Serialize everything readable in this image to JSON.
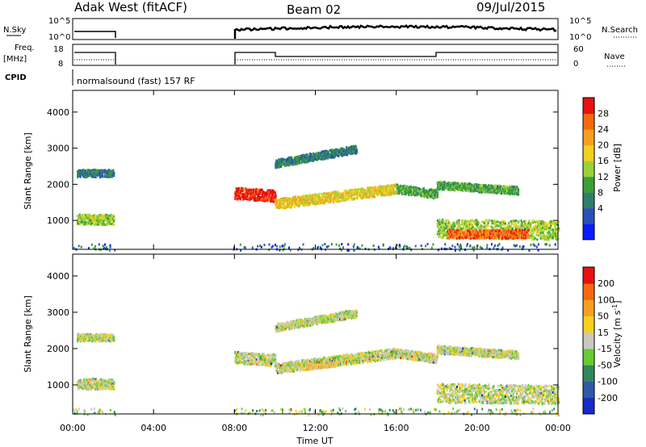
{
  "header": {
    "station": "Adak West (fitACF)",
    "beam": "Beam 02",
    "date": "09/Jul/2015"
  },
  "top_panels": {
    "nsky_label": "N.Sky",
    "nsearch_label": "N.Search",
    "nsky_ticks": [
      "10^5",
      "10^0"
    ],
    "freq_label_1": "Freq.",
    "freq_label_2": "[MHz]",
    "freq_ticks": [
      "18",
      "8"
    ],
    "nave_label": "Nave",
    "nave_ticks": [
      "60",
      "0"
    ],
    "cpid_label": "CPID",
    "cpid_text": "normalsound (fast) 157 RF"
  },
  "chart_data": [
    {
      "type": "heatmap",
      "name": "power",
      "ylabel": "Slant Range [km]",
      "xlabel": "Time UT",
      "ylim": [
        200,
        4600
      ],
      "xlim": [
        0,
        24
      ],
      "yticks": [
        "4000",
        "3000",
        "2000",
        "1000"
      ],
      "xticks": [
        "00:00",
        "04:00",
        "08:00",
        "12:00",
        "16:00",
        "20:00",
        "00:00"
      ],
      "colorbar": {
        "label": "Power [dB]",
        "ticks": [
          "28",
          "24",
          "20",
          "16",
          "12",
          "8",
          "4"
        ],
        "colors": [
          "#0a1cff",
          "#2a4fb8",
          "#2e7f6a",
          "#3aa03a",
          "#9ad23a",
          "#f0d020",
          "#f7a020",
          "#f56a10",
          "#e81010"
        ]
      },
      "bands": [
        {
          "t0": 0.2,
          "t1": 2.0,
          "r0": 2330,
          "r1": 2330,
          "w": 100,
          "level": 2
        },
        {
          "t0": 0.2,
          "t1": 2.0,
          "r0": 1050,
          "r1": 1050,
          "w": 140,
          "level": 4
        },
        {
          "t0": 8.0,
          "t1": 10.0,
          "r0": 1780,
          "r1": 1700,
          "w": 160,
          "level": 8
        },
        {
          "t0": 10.0,
          "t1": 16.0,
          "r0": 1480,
          "r1": 1900,
          "w": 140,
          "level": 5
        },
        {
          "t0": 16.0,
          "t1": 18.0,
          "r0": 1900,
          "r1": 1750,
          "w": 120,
          "level": 3
        },
        {
          "t0": 10.0,
          "t1": 14.0,
          "r0": 2600,
          "r1": 3000,
          "w": 110,
          "level": 2
        },
        {
          "t0": 18.0,
          "t1": 22.0,
          "r0": 2000,
          "r1": 1850,
          "w": 110,
          "level": 3
        },
        {
          "t0": 18.0,
          "t1": 24.0,
          "r0": 800,
          "r1": 750,
          "w": 260,
          "level": 4
        },
        {
          "t0": 18.5,
          "t1": 22.5,
          "r0": 650,
          "r1": 650,
          "w": 120,
          "level": 7
        }
      ]
    },
    {
      "type": "heatmap",
      "name": "velocity",
      "ylabel": "Slant Range [km]",
      "xlabel": "Time UT",
      "ylim": [
        200,
        4600
      ],
      "xlim": [
        0,
        24
      ],
      "yticks": [
        "4000",
        "3000",
        "2000",
        "1000"
      ],
      "xticks": [
        "00:00",
        "04:00",
        "08:00",
        "12:00",
        "16:00",
        "20:00",
        "00:00"
      ],
      "colorbar": {
        "label": "Velocity [m s^-1]",
        "ticks": [
          "200",
          "100",
          "50",
          "15",
          "-15",
          "-50",
          "-100",
          "-200"
        ],
        "colors": [
          "#1a2ac8",
          "#2e5aa8",
          "#2e8a5a",
          "#66cc33",
          "#c8c8c0",
          "#f7d020",
          "#f7a020",
          "#f56a10",
          "#e81010"
        ]
      },
      "bands": [
        {
          "t0": 0.2,
          "t1": 2.0,
          "r0": 2330,
          "r1": 2330,
          "w": 100,
          "level": 4
        },
        {
          "t0": 0.2,
          "t1": 2.0,
          "r0": 1050,
          "r1": 1050,
          "w": 140,
          "level": 4
        },
        {
          "t0": 8.0,
          "t1": 10.0,
          "r0": 1780,
          "r1": 1700,
          "w": 160,
          "level": 4
        },
        {
          "t0": 10.0,
          "t1": 16.0,
          "r0": 1480,
          "r1": 1900,
          "w": 140,
          "level": 4
        },
        {
          "t0": 16.0,
          "t1": 18.0,
          "r0": 1900,
          "r1": 1750,
          "w": 120,
          "level": 4
        },
        {
          "t0": 10.0,
          "t1": 14.0,
          "r0": 2600,
          "r1": 3000,
          "w": 110,
          "level": 4
        },
        {
          "t0": 18.0,
          "t1": 22.0,
          "r0": 2000,
          "r1": 1850,
          "w": 110,
          "level": 4
        },
        {
          "t0": 18.0,
          "t1": 24.0,
          "r0": 800,
          "r1": 750,
          "w": 260,
          "level": 4
        },
        {
          "t0": 11.5,
          "t1": 13.0,
          "r0": 1500,
          "r1": 1600,
          "w": 60,
          "level": 5
        }
      ]
    }
  ]
}
